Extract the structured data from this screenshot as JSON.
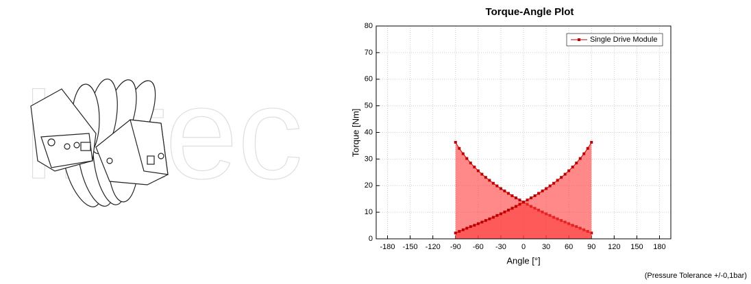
{
  "watermark": "Intec",
  "chart_data": {
    "type": "line",
    "title": "Torque-Angle Plot",
    "x_label": "Angle [°]",
    "y_label": "Torque [Nm]",
    "x": [
      -90,
      -85,
      -80,
      -75,
      -70,
      -65,
      -60,
      -55,
      -50,
      -45,
      -40,
      -35,
      -30,
      -25,
      -20,
      -15,
      -10,
      -5,
      0,
      5,
      10,
      15,
      20,
      25,
      30,
      35,
      40,
      45,
      50,
      55,
      60,
      65,
      70,
      75,
      80,
      85,
      90
    ],
    "series": [
      {
        "name": "Single Drive Module",
        "color": "#c00000",
        "fill": "#ff3b3b",
        "values": [
          36.3,
          34.0,
          32.0,
          30.2,
          28.5,
          27.0,
          25.6,
          24.3,
          23.1,
          22.0,
          20.9,
          19.9,
          18.9,
          18.0,
          17.1,
          16.2,
          15.4,
          14.6,
          13.8,
          13.0,
          12.2,
          11.5,
          10.8,
          10.1,
          9.4,
          8.8,
          8.1,
          7.5,
          6.9,
          6.3,
          5.7,
          5.1,
          4.6,
          4.0,
          3.4,
          2.8,
          2.2
        ]
      },
      {
        "color": "#c00000",
        "fill": "#ff3b3b",
        "values": [
          2.2,
          2.8,
          3.4,
          4.0,
          4.6,
          5.1,
          5.7,
          6.3,
          6.9,
          7.5,
          8.1,
          8.8,
          9.4,
          10.1,
          10.8,
          11.5,
          12.2,
          13.0,
          13.8,
          14.6,
          15.4,
          16.2,
          17.1,
          18.0,
          18.9,
          19.9,
          20.9,
          22.0,
          23.1,
          24.3,
          25.6,
          27.0,
          28.5,
          30.2,
          32.0,
          34.0,
          36.3
        ]
      }
    ],
    "xlim": [
      -195,
      195
    ],
    "xticks": [
      -180,
      -150,
      -120,
      -90,
      -60,
      -30,
      0,
      30,
      60,
      90,
      120,
      150,
      180
    ],
    "ylim": [
      0,
      80
    ],
    "yticks": [
      0,
      10,
      20,
      30,
      40,
      50,
      60,
      70,
      80
    ],
    "grid": true,
    "legend": "top-right",
    "note": "(Pressure Tolerance +/-0,1bar)"
  }
}
